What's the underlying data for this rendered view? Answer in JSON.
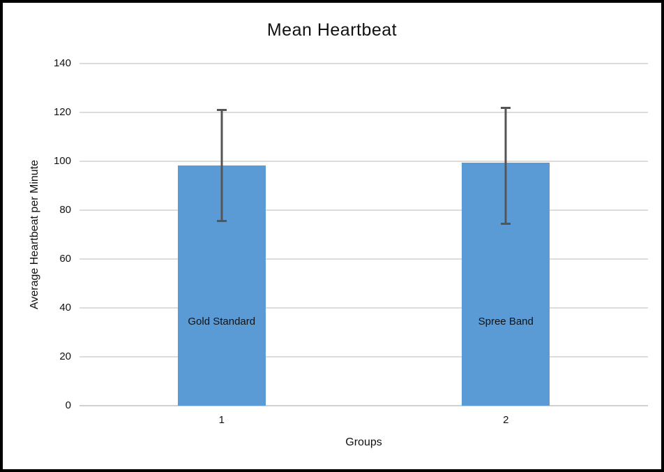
{
  "frame": {
    "border_color": "#000000",
    "background": "#ffffff"
  },
  "chart_data": {
    "type": "bar",
    "title": "Mean Heartbeat",
    "xlabel": "Groups",
    "ylabel": "Average Heartbeat per Minute",
    "categories": [
      "1",
      "2"
    ],
    "series": [
      {
        "name": "Mean Heartbeat",
        "values": [
          98.4,
          99.3
        ],
        "bar_labels": [
          "Gold Standard",
          "Spree Band"
        ],
        "error_plus": [
          23.1,
          23.0
        ],
        "error_minus": [
          23.2,
          25.2
        ]
      }
    ],
    "ylim": [
      0,
      140
    ],
    "yticks": [
      0,
      20,
      40,
      60,
      80,
      100,
      120,
      140
    ],
    "grid": true,
    "legend": "none",
    "colors": {
      "bar_fill": "#5b9bd5",
      "error_bar": "#555555",
      "gridline": "#dcdcdc",
      "axis_line": "#d0d0d0",
      "text": "#111111"
    }
  }
}
